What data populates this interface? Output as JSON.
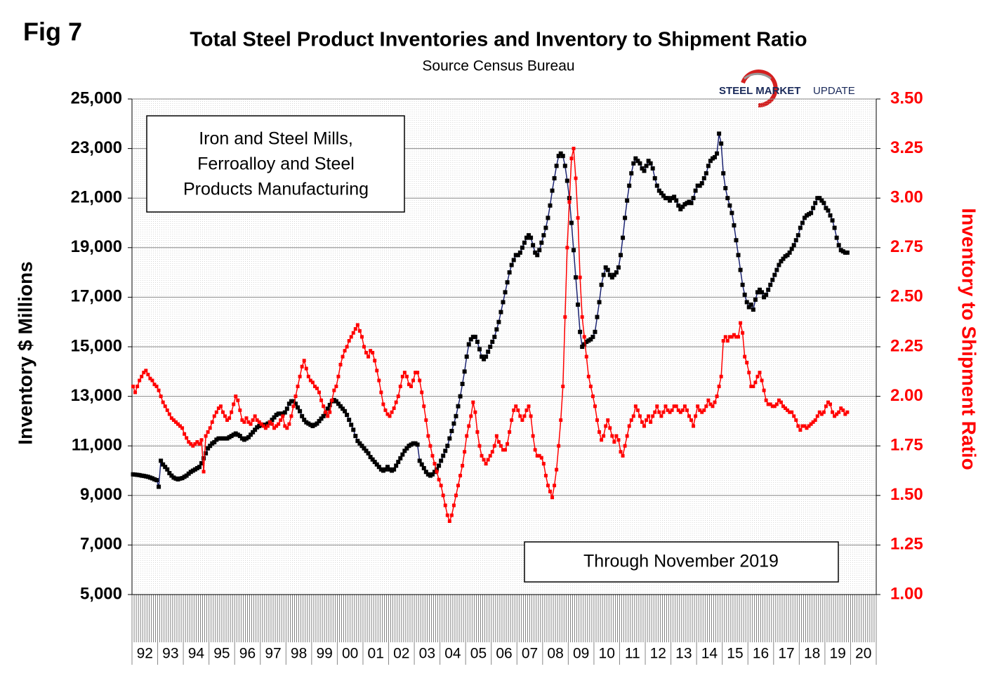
{
  "chart_data": {
    "type": "line",
    "figure_label": "Fig 7",
    "title": "Total Steel Product Inventories and Inventory to Shipment Ratio",
    "subtitle": "Source Census Bureau",
    "logo": {
      "bold": "STEEL MARKET",
      "light": "UPDATE"
    },
    "ylabel": "Inventory $ Millions",
    "y2label": "Inventory to Shipment Ratio",
    "annotations": [
      [
        "Iron and Steel Mills,",
        "Ferroalloy and Steel",
        "Products Manufacturing"
      ],
      [
        "Through November 2019"
      ]
    ],
    "ylim": [
      5000,
      25000
    ],
    "yticks": [
      {
        "value": 5000,
        "label": "5,000"
      },
      {
        "value": 7000,
        "label": "7,000"
      },
      {
        "value": 9000,
        "label": "9,000"
      },
      {
        "value": 11000,
        "label": "11,000"
      },
      {
        "value": 13000,
        "label": "13,000"
      },
      {
        "value": 15000,
        "label": "15,000"
      },
      {
        "value": 17000,
        "label": "17,000"
      },
      {
        "value": 19000,
        "label": "19,000"
      },
      {
        "value": 21000,
        "label": "21,000"
      },
      {
        "value": 23000,
        "label": "23,000"
      },
      {
        "value": 25000,
        "label": "25,000"
      }
    ],
    "y2lim": [
      1,
      3.5
    ],
    "y2ticks": [
      {
        "value": 1,
        "label": "1.00"
      },
      {
        "value": 1.25,
        "label": "1.25"
      },
      {
        "value": 1.5,
        "label": "1.50"
      },
      {
        "value": 1.75,
        "label": "1.75"
      },
      {
        "value": 2,
        "label": "2.00"
      },
      {
        "value": 2.25,
        "label": "2.25"
      },
      {
        "value": 2.5,
        "label": "2.50"
      },
      {
        "value": 2.75,
        "label": "2.75"
      },
      {
        "value": 3,
        "label": "3.00"
      },
      {
        "value": 3.25,
        "label": "3.25"
      },
      {
        "value": 3.5,
        "label": "3.50"
      }
    ],
    "grid": true,
    "categories": [
      null,
      null,
      null,
      null,
      null,
      null,
      "92",
      null,
      null,
      null,
      null,
      null,
      null,
      null,
      null,
      null,
      null,
      null,
      "93",
      null,
      null,
      null,
      null,
      null,
      null,
      null,
      null,
      null,
      null,
      null,
      "94",
      null,
      null,
      null,
      null,
      null,
      null,
      null,
      null,
      null,
      null,
      null,
      "95",
      null,
      null,
      null,
      null,
      null,
      null,
      null,
      null,
      null,
      null,
      null,
      "96",
      null,
      null,
      null,
      null,
      null,
      null,
      null,
      null,
      null,
      null,
      null,
      "97",
      null,
      null,
      null,
      null,
      null,
      null,
      null,
      null,
      null,
      null,
      null,
      "98",
      null,
      null,
      null,
      null,
      null,
      null,
      null,
      null,
      null,
      null,
      null,
      "99",
      null,
      null,
      null,
      null,
      null,
      null,
      null,
      null,
      null,
      null,
      null,
      "00",
      null,
      null,
      null,
      null,
      null,
      null,
      null,
      null,
      null,
      null,
      null,
      "01",
      null,
      null,
      null,
      null,
      null,
      null,
      null,
      null,
      null,
      null,
      null,
      "02",
      null,
      null,
      null,
      null,
      null,
      null,
      null,
      null,
      null,
      null,
      null,
      "03",
      null,
      null,
      null,
      null,
      null,
      null,
      null,
      null,
      null,
      null,
      null,
      "04",
      null,
      null,
      null,
      null,
      null,
      null,
      null,
      null,
      null,
      null,
      null,
      "05",
      null,
      null,
      null,
      null,
      null,
      null,
      null,
      null,
      null,
      null,
      null,
      "06",
      null,
      null,
      null,
      null,
      null,
      null,
      null,
      null,
      null,
      null,
      null,
      "07",
      null,
      null,
      null,
      null,
      null,
      null,
      null,
      null,
      null,
      null,
      null,
      "08",
      null,
      null,
      null,
      null,
      null,
      null,
      null,
      null,
      null,
      null,
      null,
      "09",
      null,
      null,
      null,
      null,
      null,
      null,
      null,
      null,
      null,
      null,
      null,
      "10",
      null,
      null,
      null,
      null,
      null,
      null,
      null,
      null,
      null,
      null,
      null,
      "11",
      null,
      null,
      null,
      null,
      null,
      null,
      null,
      null,
      null,
      null,
      null,
      "12",
      null,
      null,
      null,
      null,
      null,
      null,
      null,
      null,
      null,
      null,
      null,
      "13",
      null,
      null,
      null,
      null,
      null,
      null,
      null,
      null,
      null,
      null,
      null,
      "14",
      null,
      null,
      null,
      null,
      null,
      null,
      null,
      null,
      null,
      null,
      null,
      "15",
      null,
      null,
      null,
      null,
      null,
      null,
      null,
      null,
      null,
      null,
      null,
      "16",
      null,
      null,
      null,
      null,
      null,
      null,
      null,
      null,
      null,
      null,
      null,
      "17",
      null,
      null,
      null,
      null,
      null,
      null,
      null,
      null,
      null,
      null,
      null,
      "18",
      null,
      null,
      null,
      null,
      null,
      null,
      null,
      null,
      null,
      null,
      null,
      "19",
      null,
      null,
      null,
      null,
      null,
      null,
      null,
      null,
      null,
      null,
      null,
      "20",
      null,
      null,
      null,
      null,
      null
    ],
    "series": [
      {
        "color": "#000000",
        "line_color": "#1a2270",
        "values": [
          9850,
          9840,
          9830,
          9820,
          9800,
          9790,
          9770,
          9750,
          9720,
          9690,
          9650,
          9620,
          9350,
          10400,
          10250,
          10150,
          10050,
          9900,
          9800,
          9720,
          9680,
          9650,
          9680,
          9700,
          9750,
          9800,
          9880,
          9950,
          10000,
          10050,
          10100,
          10150,
          10300,
          10500,
          10700,
          10900,
          11000,
          11100,
          11150,
          11250,
          11300,
          11300,
          11300,
          11300,
          11300,
          11350,
          11400,
          11450,
          11500,
          11450,
          11400,
          11300,
          11250,
          11300,
          11350,
          11450,
          11550,
          11650,
          11750,
          11800,
          11850,
          11850,
          11850,
          11900,
          11950,
          12050,
          12150,
          12250,
          12300,
          12300,
          12300,
          12350,
          12500,
          12700,
          12800,
          12800,
          12700,
          12550,
          12400,
          12200,
          12050,
          11950,
          11900,
          11850,
          11800,
          11850,
          11900,
          12000,
          12100,
          12200,
          12300,
          12500,
          12650,
          12800,
          12850,
          12800,
          12700,
          12600,
          12500,
          12400,
          12250,
          12050,
          11850,
          11650,
          11400,
          11200,
          11100,
          11000,
          10900,
          10800,
          10700,
          10550,
          10450,
          10350,
          10250,
          10150,
          10050,
          10000,
          10050,
          10150,
          10050,
          10000,
          10050,
          10200,
          10350,
          10500,
          10650,
          10800,
          10900,
          11000,
          11050,
          11100,
          11100,
          11050,
          10400,
          10250,
          10100,
          9950,
          9850,
          9800,
          9850,
          9950,
          10050,
          10200,
          10400,
          10600,
          10800,
          11000,
          11300,
          11600,
          11900,
          12200,
          12600,
          13000,
          13500,
          14000,
          14600,
          15100,
          15300,
          15400,
          15400,
          15200,
          14900,
          14600,
          14500,
          14600,
          14800,
          15000,
          15200,
          15400,
          15700,
          16000,
          16400,
          16800,
          17200,
          17600,
          18000,
          18300,
          18500,
          18700,
          18700,
          18800,
          19000,
          19200,
          19400,
          19500,
          19400,
          19100,
          18800,
          18700,
          18900,
          19200,
          19500,
          19800,
          20200,
          20700,
          21300,
          21800,
          22300,
          22700,
          22800,
          22700,
          22300,
          21700,
          21000,
          20000,
          18900,
          17800,
          16700,
          15600,
          15000,
          15100,
          15200,
          15250,
          15300,
          15400,
          15600,
          16200,
          16800,
          17500,
          17900,
          18200,
          18100,
          17900,
          17800,
          17900,
          18000,
          18200,
          18700,
          19400,
          20200,
          20900,
          21500,
          22000,
          22400,
          22600,
          22500,
          22400,
          22200,
          22100,
          22300,
          22500,
          22400,
          22200,
          21800,
          21500,
          21300,
          21200,
          21100,
          21000,
          21000,
          20900,
          21000,
          21050,
          20900,
          20700,
          20550,
          20650,
          20750,
          20800,
          20850,
          20800,
          21000,
          21300,
          21500,
          21500,
          21600,
          21800,
          22000,
          22300,
          22500,
          22600,
          22650,
          22800,
          23600,
          23200,
          22000,
          21400,
          21000,
          20700,
          20400,
          19900,
          19300,
          18700,
          18100,
          17500,
          17100,
          16800,
          16600,
          16700,
          16500,
          16900,
          17200,
          17300,
          17200,
          17000,
          17100,
          17300,
          17500,
          17700,
          17900,
          18100,
          18300,
          18450,
          18550,
          18650,
          18700,
          18800,
          18950,
          19100,
          19300,
          19500,
          19800,
          20000,
          20200,
          20300,
          20350,
          20400,
          20600,
          20800,
          21000,
          21000,
          20900,
          20800,
          20600,
          20500,
          20300,
          20100,
          19800,
          19400,
          19100,
          18900,
          18850,
          18800,
          18800,
          null,
          null,
          null,
          null,
          null,
          null,
          null,
          null,
          null,
          null,
          null,
          null,
          null
        ]
      },
      {
        "color": "#ff0000",
        "axis": "y2",
        "values": [
          2.05,
          2.02,
          2.05,
          2.08,
          2.1,
          2.12,
          2.13,
          2.11,
          2.09,
          2.08,
          2.06,
          2.05,
          2.03,
          2.0,
          1.97,
          1.95,
          1.93,
          1.91,
          1.89,
          1.88,
          1.87,
          1.86,
          1.85,
          1.84,
          1.81,
          1.79,
          1.77,
          1.76,
          1.75,
          1.76,
          1.77,
          1.76,
          1.78,
          1.62,
          1.8,
          1.82,
          1.84,
          1.87,
          1.9,
          1.92,
          1.94,
          1.95,
          1.92,
          1.9,
          1.88,
          1.89,
          1.92,
          1.96,
          2.0,
          1.98,
          1.93,
          1.88,
          1.87,
          1.89,
          1.87,
          1.86,
          1.88,
          1.9,
          1.88,
          1.87,
          1.86,
          1.85,
          1.84,
          1.85,
          1.87,
          1.86,
          1.84,
          1.85,
          1.86,
          1.88,
          1.9,
          1.85,
          1.84,
          1.86,
          1.9,
          1.95,
          2.0,
          2.05,
          2.1,
          2.15,
          2.18,
          2.14,
          2.1,
          2.08,
          2.07,
          2.05,
          2.04,
          2.02,
          1.98,
          1.95,
          1.92,
          1.9,
          1.92,
          1.98,
          2.03,
          2.05,
          2.1,
          2.16,
          2.2,
          2.23,
          2.25,
          2.28,
          2.3,
          2.32,
          2.34,
          2.36,
          2.33,
          2.3,
          2.25,
          2.22,
          2.2,
          2.23,
          2.22,
          2.18,
          2.13,
          2.08,
          2.02,
          1.96,
          1.93,
          1.91,
          1.9,
          1.92,
          1.94,
          1.97,
          2.0,
          2.05,
          2.1,
          2.12,
          2.1,
          2.06,
          2.05,
          2.08,
          2.12,
          2.12,
          2.08,
          2.02,
          1.95,
          1.88,
          1.8,
          1.75,
          1.7,
          1.66,
          1.62,
          1.58,
          1.55,
          1.5,
          1.45,
          1.4,
          1.37,
          1.4,
          1.45,
          1.5,
          1.55,
          1.6,
          1.65,
          1.72,
          1.8,
          1.85,
          1.9,
          1.97,
          1.92,
          1.82,
          1.75,
          1.7,
          1.68,
          1.66,
          1.68,
          1.7,
          1.72,
          1.75,
          1.8,
          1.77,
          1.75,
          1.73,
          1.73,
          1.76,
          1.82,
          1.88,
          1.93,
          1.95,
          1.93,
          1.9,
          1.88,
          1.9,
          1.93,
          1.95,
          1.9,
          1.8,
          1.73,
          1.7,
          1.7,
          1.69,
          1.66,
          1.6,
          1.55,
          1.52,
          1.49,
          1.55,
          1.63,
          1.75,
          1.88,
          2.05,
          2.4,
          2.75,
          2.98,
          3.2,
          3.25,
          3.1,
          2.9,
          2.6,
          2.4,
          2.3,
          2.2,
          2.1,
          2.05,
          2.0,
          1.95,
          1.88,
          1.82,
          1.78,
          1.8,
          1.85,
          1.88,
          1.84,
          1.8,
          1.77,
          1.8,
          1.78,
          1.72,
          1.7,
          1.75,
          1.8,
          1.85,
          1.88,
          1.9,
          1.95,
          1.93,
          1.9,
          1.87,
          1.85,
          1.88,
          1.9,
          1.87,
          1.9,
          1.92,
          1.95,
          1.92,
          1.9,
          1.92,
          1.95,
          1.93,
          1.92,
          1.93,
          1.95,
          1.95,
          1.93,
          1.92,
          1.93,
          1.95,
          1.93,
          1.9,
          1.88,
          1.85,
          1.9,
          1.95,
          1.93,
          1.92,
          1.93,
          1.95,
          1.98,
          1.96,
          1.95,
          1.97,
          2.0,
          2.05,
          2.1,
          2.28,
          2.3,
          2.28,
          2.3,
          2.3,
          2.31,
          2.3,
          2.3,
          2.37,
          2.32,
          2.2,
          2.17,
          2.12,
          2.05,
          2.05,
          2.07,
          2.1,
          2.12,
          2.08,
          2.03,
          1.98,
          1.96,
          1.96,
          1.95,
          1.95,
          1.96,
          1.98,
          1.97,
          1.95,
          1.94,
          1.93,
          1.92,
          1.92,
          1.9,
          1.88,
          1.85,
          1.83,
          1.85,
          1.85,
          1.84,
          1.85,
          1.86,
          1.87,
          1.88,
          1.9,
          1.92,
          1.91,
          1.92,
          1.95,
          1.97,
          1.96,
          1.92,
          1.9,
          1.91,
          1.92,
          1.94,
          1.93,
          1.91,
          1.92,
          null,
          null,
          null,
          null,
          null,
          null,
          null,
          null,
          null,
          null,
          null,
          null,
          null
        ]
      }
    ]
  }
}
